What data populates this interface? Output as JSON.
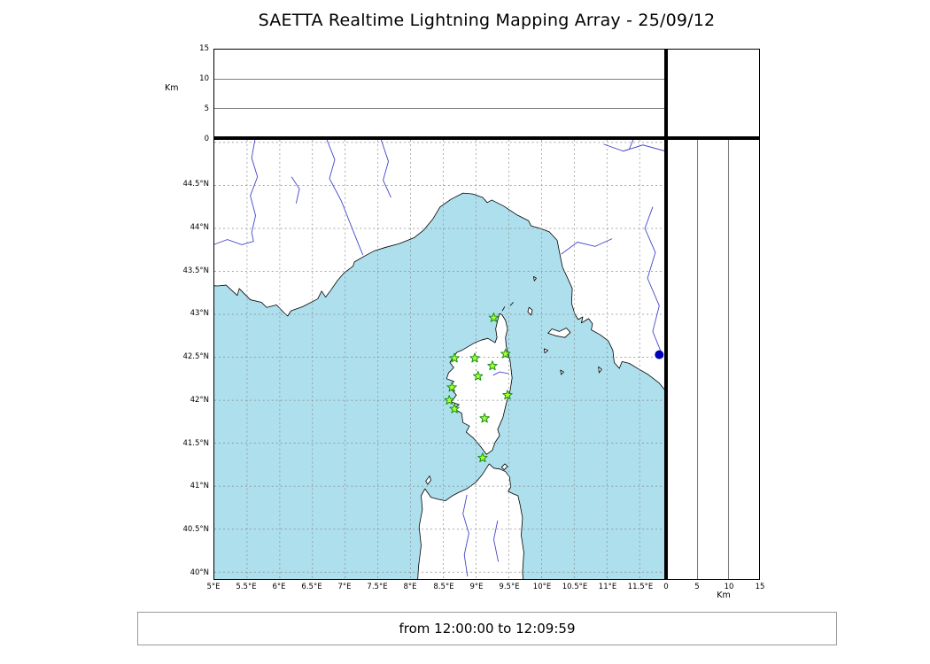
{
  "title": "SAETTA Realtime Lightning Mapping Array - 25/09/12",
  "footer": {
    "time_range": "from 12:00:00 to 12:09:59"
  },
  "colors": {
    "sea": "#aedfed",
    "land": "#ffffff",
    "coastline": "#000000",
    "grid": "#8a8a8a",
    "panel_grid": "#555555",
    "river": "#4444cc",
    "station_fill": "#adff2f",
    "station_stroke": "#169116",
    "point": "#0000bb"
  },
  "axes": {
    "lon": {
      "ticks": [
        5,
        5.5,
        6,
        6.5,
        7,
        7.5,
        8,
        8.5,
        9,
        9.5,
        10,
        10.5,
        11,
        11.5
      ],
      "labels": [
        "5°E",
        "5.5°E",
        "6°E",
        "6.5°E",
        "7°E",
        "7.5°E",
        "8°E",
        "8.5°E",
        "9°E",
        "9.5°E",
        "10°E",
        "10.5°E",
        "11°E",
        "11.5°E"
      ],
      "grid": [
        5.5,
        6,
        6.5,
        7,
        7.5,
        8,
        8.5,
        9,
        9.5,
        10,
        10.5,
        11,
        11.5
      ]
    },
    "lat": {
      "ticks": [
        40,
        40.5,
        41,
        41.5,
        42,
        42.5,
        43,
        43.5,
        44,
        44.5
      ],
      "labels": [
        "40°N",
        "40.5°N",
        "41°N",
        "41.5°N",
        "42°N",
        "42.5°N",
        "43°N",
        "43.5°N",
        "44°N",
        "44.5°N"
      ],
      "grid": [
        40,
        40.5,
        41,
        41.5,
        42,
        42.5,
        43,
        43.5,
        44,
        44.5,
        45
      ]
    },
    "alt": {
      "ticks": [
        0,
        5,
        10,
        15
      ],
      "labels": [
        "0",
        "5",
        "10",
        "15"
      ],
      "grid": [
        5,
        10
      ],
      "unit": "Km"
    }
  },
  "chart_data": {
    "type": "scatter",
    "title": "SAETTA Realtime Lightning Mapping Array - 25/09/12",
    "time_window": "from 12:00:00 to 12:09:59",
    "panels": {
      "map": {
        "x_axis": "longitude_degE",
        "x_range": [
          5.0,
          11.89
        ],
        "y_axis": "latitude_degN",
        "y_range": [
          39.92,
          45.03
        ],
        "grid": "dashed"
      },
      "top": {
        "x_axis": "longitude_degE",
        "y_axis": "altitude_km",
        "y_range": [
          0,
          15
        ],
        "grid": [
          5,
          10
        ]
      },
      "right": {
        "x_axis": "altitude_km",
        "x_range": [
          0,
          15
        ],
        "y_axis": "latitude_degN",
        "grid": [
          5,
          10
        ]
      }
    },
    "stations": [
      {
        "lon": 9.27,
        "lat": 42.96
      },
      {
        "lon": 8.67,
        "lat": 42.49
      },
      {
        "lon": 8.98,
        "lat": 42.49
      },
      {
        "lon": 9.45,
        "lat": 42.54
      },
      {
        "lon": 9.25,
        "lat": 42.4
      },
      {
        "lon": 9.03,
        "lat": 42.28
      },
      {
        "lon": 8.63,
        "lat": 42.15
      },
      {
        "lon": 9.48,
        "lat": 42.06
      },
      {
        "lon": 8.59,
        "lat": 42.0
      },
      {
        "lon": 8.67,
        "lat": 41.9
      },
      {
        "lon": 9.13,
        "lat": 41.79
      },
      {
        "lon": 9.1,
        "lat": 41.33
      }
    ],
    "points": [
      {
        "lon": 11.8,
        "lat": 42.53,
        "color": "#0000bb"
      }
    ]
  },
  "geo": {
    "land": [
      {
        "name": "mainland",
        "points": [
          [
            4.6,
            43.35
          ],
          [
            5.05,
            43.33
          ],
          [
            5.18,
            43.34
          ],
          [
            5.35,
            43.22
          ],
          [
            5.38,
            43.3
          ],
          [
            5.55,
            43.17
          ],
          [
            5.72,
            43.14
          ],
          [
            5.8,
            43.08
          ],
          [
            5.95,
            43.11
          ],
          [
            6.05,
            43.03
          ],
          [
            6.12,
            42.98
          ],
          [
            6.17,
            43.04
          ],
          [
            6.35,
            43.09
          ],
          [
            6.58,
            43.18
          ],
          [
            6.64,
            43.27
          ],
          [
            6.7,
            43.2
          ],
          [
            6.78,
            43.28
          ],
          [
            6.88,
            43.39
          ],
          [
            6.98,
            43.48
          ],
          [
            7.12,
            43.56
          ],
          [
            7.14,
            43.61
          ],
          [
            7.3,
            43.68
          ],
          [
            7.45,
            43.74
          ],
          [
            7.62,
            43.78
          ],
          [
            7.82,
            43.82
          ],
          [
            8.05,
            43.89
          ],
          [
            8.2,
            43.98
          ],
          [
            8.34,
            44.11
          ],
          [
            8.45,
            44.25
          ],
          [
            8.62,
            44.34
          ],
          [
            8.8,
            44.41
          ],
          [
            8.95,
            44.4
          ],
          [
            9.1,
            44.36
          ],
          [
            9.17,
            44.3
          ],
          [
            9.24,
            44.33
          ],
          [
            9.42,
            44.26
          ],
          [
            9.62,
            44.16
          ],
          [
            9.8,
            44.09
          ],
          [
            9.84,
            44.03
          ],
          [
            9.98,
            44.0
          ],
          [
            10.12,
            43.96
          ],
          [
            10.24,
            43.86
          ],
          [
            10.28,
            43.7
          ],
          [
            10.32,
            43.55
          ],
          [
            10.4,
            43.42
          ],
          [
            10.47,
            43.3
          ],
          [
            10.46,
            43.13
          ],
          [
            10.51,
            43.0
          ],
          [
            10.56,
            42.94
          ],
          [
            10.63,
            42.97
          ],
          [
            10.61,
            42.9
          ],
          [
            10.72,
            42.95
          ],
          [
            10.78,
            42.89
          ],
          [
            10.76,
            42.82
          ],
          [
            10.9,
            42.76
          ],
          [
            11.02,
            42.69
          ],
          [
            11.09,
            42.58
          ],
          [
            11.11,
            42.44
          ],
          [
            11.19,
            42.37
          ],
          [
            11.23,
            42.45
          ],
          [
            11.34,
            42.43
          ],
          [
            11.47,
            42.37
          ],
          [
            11.63,
            42.3
          ],
          [
            11.8,
            42.2
          ],
          [
            11.95,
            42.06
          ],
          [
            12.3,
            41.9
          ],
          [
            12.3,
            45.4
          ],
          [
            4.6,
            45.4
          ]
        ]
      },
      {
        "name": "corsica",
        "points": [
          [
            9.36,
            43.01
          ],
          [
            9.33,
            42.93
          ],
          [
            9.3,
            42.83
          ],
          [
            9.32,
            42.73
          ],
          [
            9.29,
            42.67
          ],
          [
            9.18,
            42.72
          ],
          [
            9.08,
            42.7
          ],
          [
            8.98,
            42.67
          ],
          [
            8.87,
            42.62
          ],
          [
            8.78,
            42.58
          ],
          [
            8.71,
            42.56
          ],
          [
            8.65,
            42.5
          ],
          [
            8.6,
            42.44
          ],
          [
            8.66,
            42.38
          ],
          [
            8.58,
            42.32
          ],
          [
            8.55,
            42.25
          ],
          [
            8.66,
            42.22
          ],
          [
            8.6,
            42.15
          ],
          [
            8.7,
            42.06
          ],
          [
            8.62,
            41.98
          ],
          [
            8.74,
            41.95
          ],
          [
            8.66,
            41.9
          ],
          [
            8.78,
            41.85
          ],
          [
            8.8,
            41.74
          ],
          [
            8.9,
            41.7
          ],
          [
            8.85,
            41.63
          ],
          [
            8.96,
            41.56
          ],
          [
            9.07,
            41.46
          ],
          [
            9.16,
            41.37
          ],
          [
            9.25,
            41.42
          ],
          [
            9.29,
            41.51
          ],
          [
            9.36,
            41.59
          ],
          [
            9.33,
            41.66
          ],
          [
            9.41,
            41.8
          ],
          [
            9.46,
            41.96
          ],
          [
            9.52,
            42.11
          ],
          [
            9.55,
            42.26
          ],
          [
            9.52,
            42.46
          ],
          [
            9.46,
            42.63
          ],
          [
            9.45,
            42.73
          ],
          [
            9.48,
            42.83
          ],
          [
            9.45,
            42.93
          ],
          [
            9.4,
            42.99
          ]
        ]
      },
      {
        "name": "sardinia",
        "points": [
          [
            8.1,
            39.8
          ],
          [
            8.12,
            40.06
          ],
          [
            8.16,
            40.31
          ],
          [
            8.13,
            40.53
          ],
          [
            8.18,
            40.73
          ],
          [
            8.16,
            40.89
          ],
          [
            8.22,
            40.97
          ],
          [
            8.31,
            40.87
          ],
          [
            8.41,
            40.85
          ],
          [
            8.53,
            40.83
          ],
          [
            8.64,
            40.89
          ],
          [
            8.74,
            40.93
          ],
          [
            8.86,
            40.97
          ],
          [
            8.99,
            41.04
          ],
          [
            9.09,
            41.13
          ],
          [
            9.15,
            41.2
          ],
          [
            9.2,
            41.26
          ],
          [
            9.27,
            41.21
          ],
          [
            9.36,
            41.2
          ],
          [
            9.45,
            41.17
          ],
          [
            9.51,
            41.11
          ],
          [
            9.53,
            40.99
          ],
          [
            9.49,
            40.94
          ],
          [
            9.57,
            40.91
          ],
          [
            9.64,
            40.89
          ],
          [
            9.67,
            40.79
          ],
          [
            9.71,
            40.63
          ],
          [
            9.69,
            40.43
          ],
          [
            9.73,
            40.23
          ],
          [
            9.71,
            40.0
          ],
          [
            9.73,
            39.8
          ]
        ]
      },
      {
        "name": "elba",
        "points": [
          [
            10.1,
            42.78
          ],
          [
            10.16,
            42.83
          ],
          [
            10.27,
            42.8
          ],
          [
            10.38,
            42.84
          ],
          [
            10.44,
            42.79
          ],
          [
            10.36,
            42.73
          ],
          [
            10.22,
            42.75
          ]
        ]
      },
      {
        "name": "asinara",
        "points": [
          [
            8.26,
            41.02
          ],
          [
            8.31,
            41.07
          ],
          [
            8.29,
            41.12
          ],
          [
            8.23,
            41.06
          ]
        ]
      },
      {
        "name": "maddalena",
        "points": [
          [
            9.39,
            41.22
          ],
          [
            9.44,
            41.26
          ],
          [
            9.48,
            41.23
          ],
          [
            9.43,
            41.19
          ]
        ]
      },
      {
        "name": "capraia",
        "points": [
          [
            9.81,
            43.08
          ],
          [
            9.86,
            43.05
          ],
          [
            9.84,
            42.99
          ],
          [
            9.79,
            43.03
          ]
        ]
      },
      {
        "name": "gorgona",
        "points": [
          [
            9.88,
            43.44
          ],
          [
            9.92,
            43.42
          ],
          [
            9.89,
            43.39
          ]
        ]
      },
      {
        "name": "pianosa",
        "points": [
          [
            10.04,
            42.6
          ],
          [
            10.1,
            42.58
          ],
          [
            10.05,
            42.55
          ]
        ]
      },
      {
        "name": "montecristo",
        "points": [
          [
            10.29,
            42.35
          ],
          [
            10.34,
            42.33
          ],
          [
            10.3,
            42.3
          ]
        ]
      },
      {
        "name": "giglio",
        "points": [
          [
            10.87,
            42.39
          ],
          [
            10.92,
            42.36
          ],
          [
            10.88,
            42.32
          ]
        ]
      }
    ],
    "islet_marks": [
      [
        [
          9.4,
          43.04
        ],
        [
          9.44,
          43.09
        ]
      ],
      [
        [
          9.52,
          43.1
        ],
        [
          9.57,
          43.14
        ]
      ]
    ],
    "rivers": [
      {
        "name": "rhone-durance",
        "points": [
          [
            5.62,
            45.03
          ],
          [
            5.57,
            44.82
          ],
          [
            5.66,
            44.6
          ],
          [
            5.55,
            44.38
          ],
          [
            5.63,
            44.15
          ],
          [
            5.57,
            43.95
          ],
          [
            5.6,
            43.85
          ]
        ]
      },
      {
        "name": "durance-west",
        "points": [
          [
            4.95,
            43.8
          ],
          [
            5.2,
            43.87
          ],
          [
            5.42,
            43.81
          ],
          [
            5.6,
            43.85
          ]
        ]
      },
      {
        "name": "var",
        "points": [
          [
            6.72,
            45.03
          ],
          [
            6.84,
            44.8
          ],
          [
            6.76,
            44.58
          ],
          [
            6.94,
            44.32
          ],
          [
            7.08,
            44.05
          ],
          [
            7.2,
            43.82
          ],
          [
            7.27,
            43.69
          ]
        ]
      },
      {
        "name": "ubaye",
        "points": [
          [
            6.18,
            44.6
          ],
          [
            6.3,
            44.46
          ],
          [
            6.25,
            44.29
          ]
        ]
      },
      {
        "name": "tanaro",
        "points": [
          [
            7.55,
            45.03
          ],
          [
            7.66,
            44.78
          ],
          [
            7.58,
            44.56
          ],
          [
            7.7,
            44.36
          ]
        ]
      },
      {
        "name": "po",
        "points": [
          [
            10.95,
            44.98
          ],
          [
            11.25,
            44.9
          ],
          [
            11.55,
            44.97
          ],
          [
            11.89,
            44.9
          ]
        ]
      },
      {
        "name": "po-branch",
        "points": [
          [
            11.4,
            45.03
          ],
          [
            11.34,
            44.92
          ],
          [
            11.25,
            44.9
          ]
        ]
      },
      {
        "name": "arno",
        "points": [
          [
            11.08,
            43.88
          ],
          [
            10.82,
            43.79
          ],
          [
            10.55,
            43.84
          ],
          [
            10.3,
            43.7
          ]
        ]
      },
      {
        "name": "tiber",
        "points": [
          [
            11.7,
            44.25
          ],
          [
            11.58,
            44.0
          ],
          [
            11.74,
            43.72
          ],
          [
            11.62,
            43.42
          ],
          [
            11.8,
            43.1
          ],
          [
            11.7,
            42.8
          ],
          [
            11.86,
            42.5
          ]
        ]
      },
      {
        "name": "tavignano",
        "points": [
          [
            9.5,
            42.31
          ],
          [
            9.36,
            42.33
          ],
          [
            9.26,
            42.29
          ]
        ]
      },
      {
        "name": "coghinas",
        "points": [
          [
            8.86,
            40.9
          ],
          [
            8.8,
            40.68
          ],
          [
            8.89,
            40.45
          ],
          [
            8.82,
            40.2
          ],
          [
            8.87,
            39.95
          ]
        ]
      },
      {
        "name": "posada",
        "points": [
          [
            9.33,
            40.6
          ],
          [
            9.27,
            40.38
          ],
          [
            9.34,
            40.12
          ]
        ]
      }
    ]
  }
}
